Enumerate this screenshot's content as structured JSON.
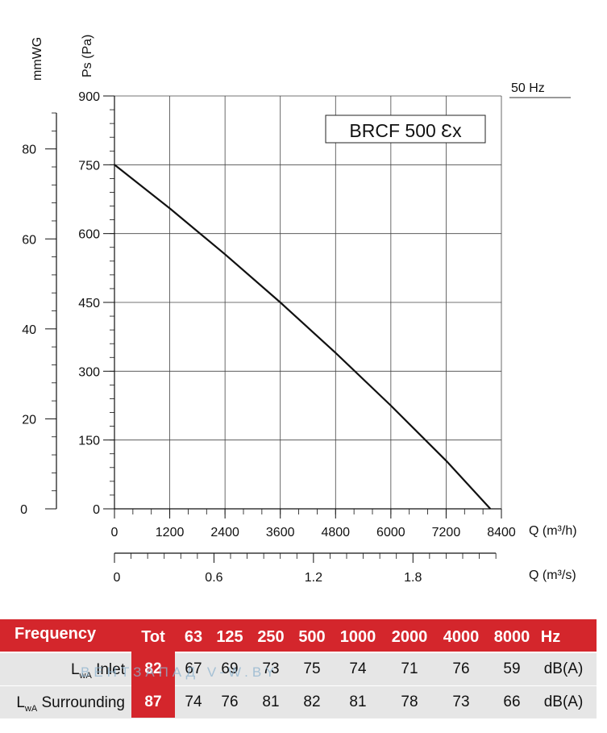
{
  "chart_data": {
    "type": "line",
    "title": "BRCF 500 Ɛx",
    "frequency_label": "50 Hz",
    "ylabel_left": "Ps (Pa)",
    "ylabel_outer": "mmWG",
    "xlabel": "Q (m³/h)",
    "xlabel_secondary": "Q (m³/s)",
    "xlim": [
      0,
      8400
    ],
    "ylim": [
      0,
      900
    ],
    "xticks": [
      "0",
      "1200",
      "2400",
      "3600",
      "4800",
      "6000",
      "7200",
      "8400"
    ],
    "yticks": [
      "0",
      "150",
      "300",
      "450",
      "600",
      "750",
      "900"
    ],
    "yticks_mmwg": [
      "0",
      "20",
      "40",
      "60",
      "80"
    ],
    "xticks_secondary": [
      "0",
      "0.6",
      "1.2",
      "1.8"
    ],
    "grid": true,
    "series": [
      {
        "x": [
          0,
          1200,
          2400,
          3600,
          4800,
          6000,
          7200,
          8160
        ],
        "y": [
          750,
          655,
          555,
          450,
          340,
          225,
          105,
          0
        ]
      }
    ]
  },
  "sound_table": {
    "header": [
      "Frequency",
      "Tot",
      "63",
      "125",
      "250",
      "500",
      "1000",
      "2000",
      "4000",
      "8000",
      "Hz"
    ],
    "rows": [
      {
        "label_main": "L",
        "label_sub": "wA",
        "label_rest": " Inlet",
        "values": [
          "82",
          "67",
          "69",
          "73",
          "75",
          "74",
          "71",
          "76",
          "59",
          "dB(A)"
        ]
      },
      {
        "label_main": "L",
        "label_sub": "wA",
        "label_rest": " Surrounding",
        "values": [
          "87",
          "74",
          "76",
          "81",
          "82",
          "81",
          "78",
          "73",
          "66",
          "dB(A)"
        ]
      }
    ]
  },
  "watermark": "ВЕНТЗАПАД  V-W.BY"
}
